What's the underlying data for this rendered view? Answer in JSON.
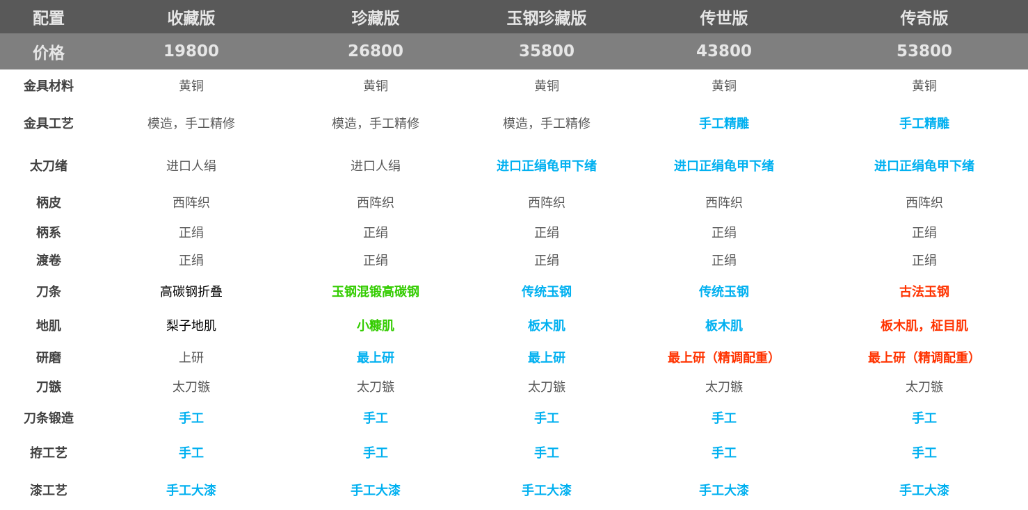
{
  "colors": {
    "header_bg": "#595959",
    "price_bg": "#7f7f7f",
    "blue": "#00b0f0",
    "green": "#33cc00",
    "red": "#ff3300",
    "normal": "#595959",
    "black": "#000000"
  },
  "header": {
    "label": "配置",
    "editions": [
      "收藏版",
      "珍藏版",
      "玉钢珍藏版",
      "传世版",
      "传奇版"
    ]
  },
  "price": {
    "label": "价格",
    "values": [
      "19800",
      "26800",
      "35800",
      "43800",
      "53800"
    ]
  },
  "rows": [
    {
      "label": "金具材料",
      "cells": [
        {
          "text": "黄铜",
          "style": "normal"
        },
        {
          "text": "黄铜",
          "style": "normal"
        },
        {
          "text": "黄铜",
          "style": "normal"
        },
        {
          "text": "黄铜",
          "style": "normal"
        },
        {
          "text": "黄铜",
          "style": "normal"
        }
      ]
    },
    {
      "label": "金具工艺",
      "cells": [
        {
          "text": "模造，手工精修",
          "style": "normal"
        },
        {
          "text": "模造，手工精修",
          "style": "normal"
        },
        {
          "text": "模造，手工精修",
          "style": "normal"
        },
        {
          "text": "手工精雕",
          "style": "blue"
        },
        {
          "text": "手工精雕",
          "style": "blue"
        }
      ]
    },
    {
      "label": "太刀绪",
      "cells": [
        {
          "text": "进口人绢",
          "style": "normal"
        },
        {
          "text": "进口人绢",
          "style": "normal"
        },
        {
          "text": "进口正绢龟甲下绪",
          "style": "blue"
        },
        {
          "text": "进口正绢龟甲下绪",
          "style": "blue"
        },
        {
          "text": "进口正绢龟甲下绪",
          "style": "blue"
        }
      ]
    },
    {
      "label": "柄皮",
      "cells": [
        {
          "text": "西阵织",
          "style": "normal"
        },
        {
          "text": "西阵织",
          "style": "normal"
        },
        {
          "text": "西阵织",
          "style": "normal"
        },
        {
          "text": "西阵织",
          "style": "normal"
        },
        {
          "text": "西阵织",
          "style": "normal"
        }
      ]
    },
    {
      "label": "柄系",
      "cells": [
        {
          "text": "正绢",
          "style": "normal"
        },
        {
          "text": "正绢",
          "style": "normal"
        },
        {
          "text": "正绢",
          "style": "normal"
        },
        {
          "text": "正绢",
          "style": "normal"
        },
        {
          "text": "正绢",
          "style": "normal"
        }
      ]
    },
    {
      "label": "渡卷",
      "cells": [
        {
          "text": "正绢",
          "style": "normal"
        },
        {
          "text": "正绢",
          "style": "normal"
        },
        {
          "text": "正绢",
          "style": "normal"
        },
        {
          "text": "正绢",
          "style": "normal"
        },
        {
          "text": "正绢",
          "style": "normal"
        }
      ]
    },
    {
      "label": "刀条",
      "cells": [
        {
          "text": "高碳钢折叠",
          "style": "black"
        },
        {
          "text": "玉钢混锻高碳钢",
          "style": "green"
        },
        {
          "text": "传统玉钢",
          "style": "blue"
        },
        {
          "text": "传统玉钢",
          "style": "blue"
        },
        {
          "text": "古法玉钢",
          "style": "red"
        }
      ]
    },
    {
      "label": "地肌",
      "cells": [
        {
          "text": "梨子地肌",
          "style": "black"
        },
        {
          "text": "小糠肌",
          "style": "green"
        },
        {
          "text": "板木肌",
          "style": "blue"
        },
        {
          "text": "板木肌",
          "style": "blue"
        },
        {
          "text": "板木肌，柾目肌",
          "style": "red"
        }
      ]
    },
    {
      "label": "研磨",
      "cells": [
        {
          "text": "上研",
          "style": "normal"
        },
        {
          "text": "最上研",
          "style": "blue"
        },
        {
          "text": "最上研",
          "style": "blue"
        },
        {
          "text": "最上研（精调配重）",
          "style": "red"
        },
        {
          "text": "最上研（精调配重）",
          "style": "red"
        }
      ]
    },
    {
      "label": "刀镞",
      "cells": [
        {
          "text": "太刀镞",
          "style": "normal"
        },
        {
          "text": "太刀镞",
          "style": "normal"
        },
        {
          "text": "太刀镞",
          "style": "normal"
        },
        {
          "text": "太刀镞",
          "style": "normal"
        },
        {
          "text": "太刀镞",
          "style": "normal"
        }
      ]
    },
    {
      "label": "刀条锻造",
      "cells": [
        {
          "text": "手工",
          "style": "blue"
        },
        {
          "text": "手工",
          "style": "blue"
        },
        {
          "text": "手工",
          "style": "blue"
        },
        {
          "text": "手工",
          "style": "blue"
        },
        {
          "text": "手工",
          "style": "blue"
        }
      ]
    },
    {
      "label": "拵工艺",
      "cells": [
        {
          "text": "手工",
          "style": "blue"
        },
        {
          "text": "手工",
          "style": "blue"
        },
        {
          "text": "手工",
          "style": "blue"
        },
        {
          "text": "手工",
          "style": "blue"
        },
        {
          "text": "手工",
          "style": "blue"
        }
      ]
    },
    {
      "label": "漆工艺",
      "cells": [
        {
          "text": "手工大漆",
          "style": "blue"
        },
        {
          "text": "手工大漆",
          "style": "blue"
        },
        {
          "text": "手工大漆",
          "style": "blue"
        },
        {
          "text": "手工大漆",
          "style": "blue"
        },
        {
          "text": "手工大漆",
          "style": "blue"
        }
      ]
    }
  ]
}
